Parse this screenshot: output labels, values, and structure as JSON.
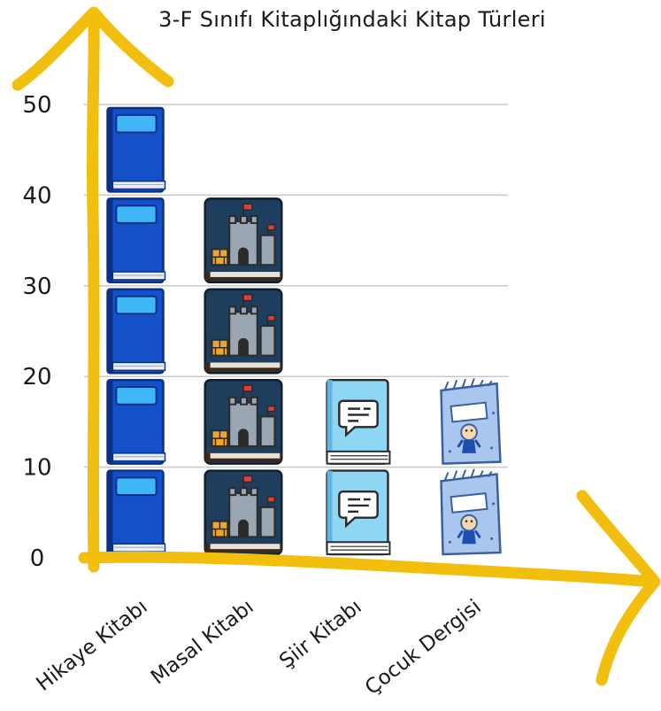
{
  "chart_data": {
    "type": "bar",
    "title": "3-F Sınıfı Kitaplığındaki Kitap Türleri",
    "xlabel": "",
    "ylabel": "",
    "categories": [
      "Hikaye Kitabı",
      "Masal Kitabı",
      "Şiir Kitabı",
      "Çocuk Dergisi"
    ],
    "values": [
      50,
      40,
      20,
      20
    ],
    "ylim": [
      0,
      50
    ],
    "yticks": [
      "0",
      "10",
      "20",
      "30",
      "40",
      "50"
    ],
    "icon_unit": 10,
    "icons": [
      "blue-book-icon",
      "castle-book-icon",
      "chat-book-icon",
      "comic-magazine-icon"
    ],
    "grid": true,
    "legend": "none"
  },
  "colors": {
    "axis": "#f2bf0f",
    "grid": "#c9c9c9",
    "blue_book": "#1450c8",
    "blue_book_dark": "#0c2f86",
    "blue_book_label": "#3fb6f5",
    "castle_cover": "#1f3d5c",
    "castle_gray": "#9aa6b2",
    "castle_brick": "#f0a42a",
    "castle_flag": "#e23b3b",
    "poem_cover": "#8fd6f5",
    "poem_dark": "#2f6f8f",
    "magazine": "#a9c7ee",
    "magazine_dark": "#3a5f9c"
  }
}
